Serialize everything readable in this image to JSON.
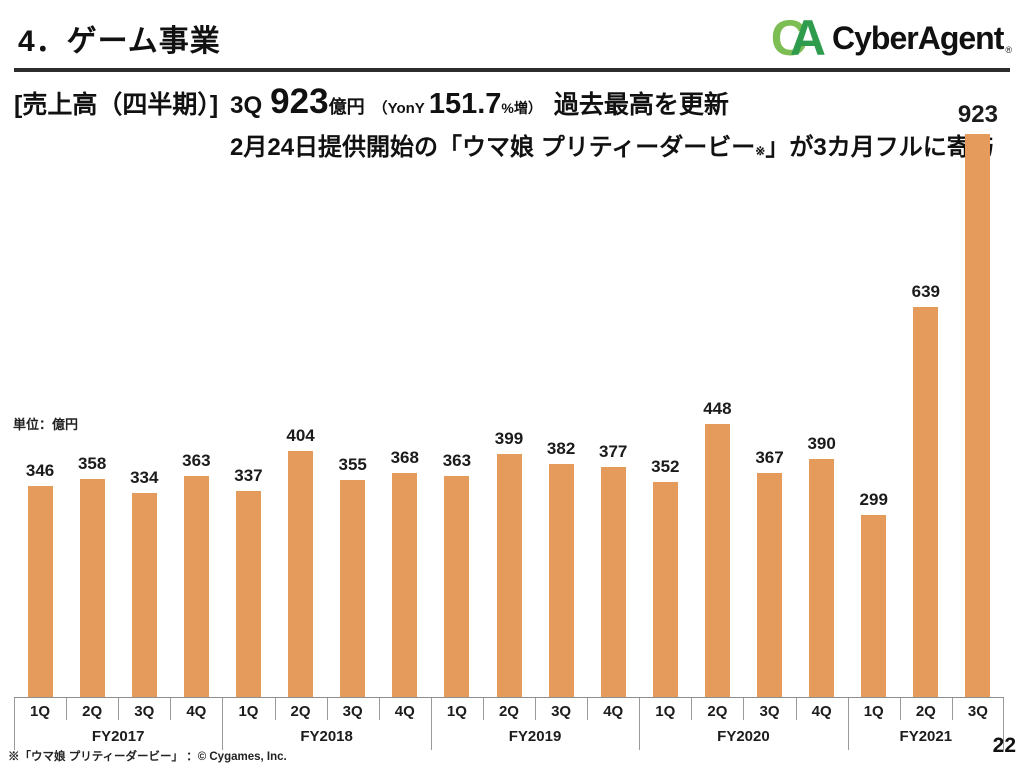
{
  "slide": {
    "title": "4．ゲーム事業",
    "page_number": "22",
    "footnote": "※「ウマ娘 プリティーダービー」 ：© Cygames, Inc."
  },
  "logo": {
    "mark_c": "C",
    "mark_a": "A",
    "wordmark": "CyberAgent",
    "registered": "®",
    "color_c": "#7CBE53",
    "color_a": "#2E9B4D"
  },
  "headline": {
    "bracket": "[売上高（四半期）]",
    "quarter": "3Q",
    "revenue": "923",
    "unit": "億円",
    "yoy_open": "（YonY",
    "yoy_value": "151.7",
    "yoy_close": "%増）",
    "record": "過去最高を更新",
    "line2_prefix": "2月24日提供開始の「ウマ娘 プリティーダービー",
    "line2_ref": "※",
    "line2_suffix": "」が3カ月フルに寄与"
  },
  "chart": {
    "unit_label": "単位：億円"
  },
  "chart_data": {
    "type": "bar",
    "title": "売上高（四半期） ゲーム事業",
    "ylabel": "億円",
    "ylim": [
      0,
      923
    ],
    "grid": false,
    "bar_color": "#E59B5C",
    "categories": [
      "1Q",
      "2Q",
      "3Q",
      "4Q",
      "1Q",
      "2Q",
      "3Q",
      "4Q",
      "1Q",
      "2Q",
      "3Q",
      "4Q",
      "1Q",
      "2Q",
      "3Q",
      "4Q",
      "1Q",
      "2Q",
      "3Q"
    ],
    "values": [
      346,
      358,
      334,
      363,
      337,
      404,
      355,
      368,
      363,
      399,
      382,
      377,
      352,
      448,
      367,
      390,
      299,
      639,
      923
    ],
    "groups": [
      {
        "label": "FY2017",
        "count": 4
      },
      {
        "label": "FY2018",
        "count": 4
      },
      {
        "label": "FY2019",
        "count": 4
      },
      {
        "label": "FY2020",
        "count": 4
      },
      {
        "label": "FY2021",
        "count": 3
      }
    ]
  }
}
